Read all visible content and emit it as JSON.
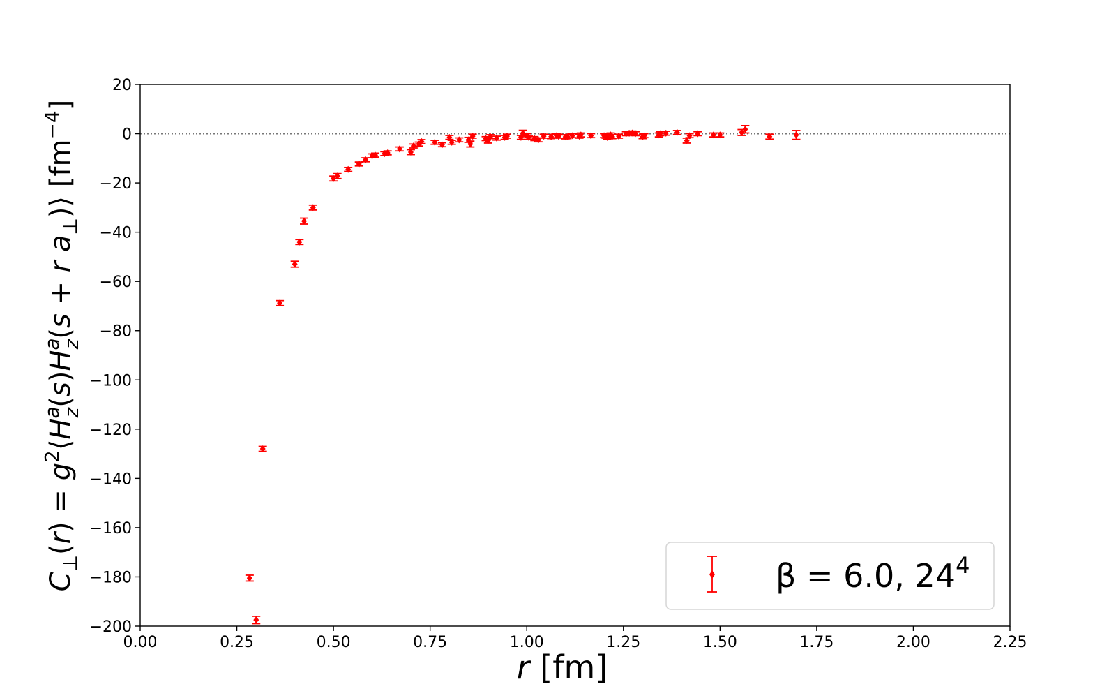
{
  "chart_data": {
    "type": "scatter",
    "error_bars": true,
    "xlabel": "r [fm]",
    "ylabel": "C⊥(r) = g²⟨Hᵃz(s)Hᵃz(s + r a⊥)⟩ [fm⁻⁴]",
    "xlim": [
      0.0,
      2.25
    ],
    "ylim": [
      -200,
      20
    ],
    "xticks": [
      "0.00",
      "0.25",
      "0.50",
      "0.75",
      "1.00",
      "1.25",
      "1.50",
      "1.75",
      "2.00",
      "2.25"
    ],
    "yticks": [
      "20",
      "0",
      "−20",
      "−40",
      "−60",
      "−80",
      "−100",
      "−120",
      "−140",
      "−160",
      "−180",
      "−200"
    ],
    "reference_line_y": 0,
    "grid": false,
    "legend_position": "lower-right",
    "series": [
      {
        "name": "β = 6.0, 24⁴",
        "color": "#ff0000",
        "marker": "diamond",
        "points": [
          {
            "x": 0.283,
            "y": -180.5,
            "err": 1.2
          },
          {
            "x": 0.3,
            "y": -197.5,
            "err": 1.5
          },
          {
            "x": 0.317,
            "y": -128.0,
            "err": 1.0
          },
          {
            "x": 0.361,
            "y": -68.8,
            "err": 1.0
          },
          {
            "x": 0.4,
            "y": -53.0,
            "err": 1.2
          },
          {
            "x": 0.412,
            "y": -44.0,
            "err": 1.0
          },
          {
            "x": 0.424,
            "y": -35.5,
            "err": 1.2
          },
          {
            "x": 0.447,
            "y": -30.0,
            "err": 1.0
          },
          {
            "x": 0.5,
            "y": -18.2,
            "err": 1.0
          },
          {
            "x": 0.51,
            "y": -17.2,
            "err": 1.0
          },
          {
            "x": 0.538,
            "y": -14.5,
            "err": 0.8
          },
          {
            "x": 0.566,
            "y": -12.3,
            "err": 0.8
          },
          {
            "x": 0.583,
            "y": -10.6,
            "err": 0.8
          },
          {
            "x": 0.6,
            "y": -9.0,
            "err": 0.8
          },
          {
            "x": 0.608,
            "y": -8.7,
            "err": 0.8
          },
          {
            "x": 0.632,
            "y": -8.1,
            "err": 0.8
          },
          {
            "x": 0.64,
            "y": -7.8,
            "err": 0.8
          },
          {
            "x": 0.671,
            "y": -6.2,
            "err": 0.8
          },
          {
            "x": 0.7,
            "y": -7.5,
            "err": 1.0
          },
          {
            "x": 0.707,
            "y": -5.0,
            "err": 0.8
          },
          {
            "x": 0.721,
            "y": -4.2,
            "err": 0.8
          },
          {
            "x": 0.728,
            "y": -3.2,
            "err": 0.8
          },
          {
            "x": 0.762,
            "y": -3.5,
            "err": 0.8
          },
          {
            "x": 0.781,
            "y": -4.5,
            "err": 0.8
          },
          {
            "x": 0.8,
            "y": -1.5,
            "err": 0.8
          },
          {
            "x": 0.806,
            "y": -3.5,
            "err": 0.8
          },
          {
            "x": 0.825,
            "y": -2.5,
            "err": 0.8
          },
          {
            "x": 0.849,
            "y": -2.5,
            "err": 1.0
          },
          {
            "x": 0.854,
            "y": -4.2,
            "err": 1.2
          },
          {
            "x": 0.86,
            "y": -1.0,
            "err": 0.8
          },
          {
            "x": 0.894,
            "y": -2.0,
            "err": 0.8
          },
          {
            "x": 0.9,
            "y": -2.8,
            "err": 1.0
          },
          {
            "x": 0.906,
            "y": -1.2,
            "err": 0.8
          },
          {
            "x": 0.922,
            "y": -1.8,
            "err": 0.8
          },
          {
            "x": 0.943,
            "y": -1.5,
            "err": 0.8
          },
          {
            "x": 0.949,
            "y": -1.0,
            "err": 0.8
          },
          {
            "x": 0.985,
            "y": -1.5,
            "err": 0.8
          },
          {
            "x": 0.99,
            "y": 0.2,
            "err": 1.2
          },
          {
            "x": 1.0,
            "y": -0.8,
            "err": 0.8
          },
          {
            "x": 1.005,
            "y": -1.5,
            "err": 0.8
          },
          {
            "x": 1.02,
            "y": -2.0,
            "err": 0.8
          },
          {
            "x": 1.03,
            "y": -2.5,
            "err": 0.8
          },
          {
            "x": 1.044,
            "y": -1.0,
            "err": 0.8
          },
          {
            "x": 1.063,
            "y": -1.2,
            "err": 0.8
          },
          {
            "x": 1.077,
            "y": -0.8,
            "err": 0.8
          },
          {
            "x": 1.082,
            "y": -1.0,
            "err": 0.8
          },
          {
            "x": 1.1,
            "y": -1.3,
            "err": 0.8
          },
          {
            "x": 1.105,
            "y": -1.2,
            "err": 0.8
          },
          {
            "x": 1.118,
            "y": -0.8,
            "err": 0.8
          },
          {
            "x": 1.136,
            "y": -1.0,
            "err": 0.8
          },
          {
            "x": 1.14,
            "y": -0.5,
            "err": 0.8
          },
          {
            "x": 1.166,
            "y": -0.8,
            "err": 0.8
          },
          {
            "x": 1.2,
            "y": -0.8,
            "err": 0.8
          },
          {
            "x": 1.204,
            "y": -1.0,
            "err": 0.8
          },
          {
            "x": 1.208,
            "y": -1.5,
            "err": 0.8
          },
          {
            "x": 1.217,
            "y": -0.5,
            "err": 0.8
          },
          {
            "x": 1.221,
            "y": -1.2,
            "err": 0.8
          },
          {
            "x": 1.238,
            "y": -1.0,
            "err": 0.8
          },
          {
            "x": 1.257,
            "y": 0.0,
            "err": 0.8
          },
          {
            "x": 1.265,
            "y": 0.2,
            "err": 0.8
          },
          {
            "x": 1.273,
            "y": 0.3,
            "err": 0.8
          },
          {
            "x": 1.281,
            "y": 0.0,
            "err": 0.8
          },
          {
            "x": 1.3,
            "y": -1.2,
            "err": 0.8
          },
          {
            "x": 1.304,
            "y": -0.8,
            "err": 0.8
          },
          {
            "x": 1.342,
            "y": -0.5,
            "err": 0.8
          },
          {
            "x": 1.345,
            "y": 0.0,
            "err": 0.8
          },
          {
            "x": 1.36,
            "y": 0.2,
            "err": 0.8
          },
          {
            "x": 1.389,
            "y": 0.5,
            "err": 0.8
          },
          {
            "x": 1.414,
            "y": -2.8,
            "err": 1.0
          },
          {
            "x": 1.421,
            "y": -0.8,
            "err": 0.8
          },
          {
            "x": 1.442,
            "y": 0.0,
            "err": 0.8
          },
          {
            "x": 1.483,
            "y": -0.5,
            "err": 0.8
          },
          {
            "x": 1.5,
            "y": -0.5,
            "err": 0.8
          },
          {
            "x": 1.556,
            "y": 0.5,
            "err": 1.2
          },
          {
            "x": 1.565,
            "y": 1.8,
            "err": 1.5
          },
          {
            "x": 1.628,
            "y": -1.2,
            "err": 1.0
          },
          {
            "x": 1.697,
            "y": -0.5,
            "err": 1.8
          }
        ]
      }
    ]
  }
}
